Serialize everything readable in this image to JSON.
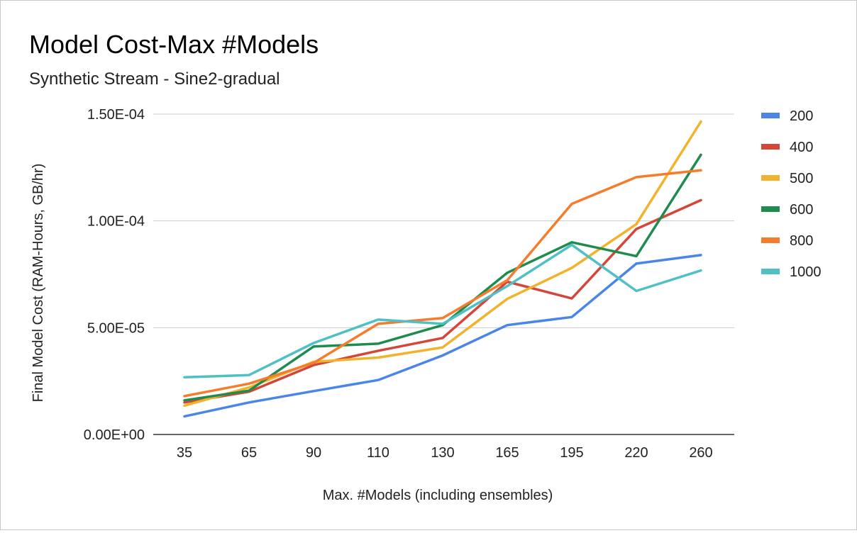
{
  "chart_data": {
    "type": "line",
    "title": "Model Cost-Max #Models",
    "subtitle": "Synthetic Stream - Sine2-gradual",
    "xlabel": "Max. #Models (including ensembles)",
    "ylabel": "Final Model Cost (RAM-Hours, GB/hr)",
    "categories": [
      "35",
      "65",
      "90",
      "110",
      "130",
      "165",
      "195",
      "220",
      "260"
    ],
    "y_ticks": [
      "0.00E+00",
      "5.00E-05",
      "1.00E-04",
      "1.50E-04"
    ],
    "ylim": [
      0,
      0.00015
    ],
    "grid": true,
    "legend_position": "right",
    "series": [
      {
        "name": "200",
        "color": "#4a86e8",
        "values": [
          8.5e-06,
          1.5e-05,
          2.03e-05,
          2.55e-05,
          3.7e-05,
          5.12e-05,
          5.5e-05,
          8e-05,
          8.4e-05
        ]
      },
      {
        "name": "400",
        "color": "#d44638",
        "values": [
          1.5e-05,
          2e-05,
          3.25e-05,
          3.92e-05,
          4.52e-05,
          7.15e-05,
          6.37e-05,
          9.62e-05,
          0.0001097
        ]
      },
      {
        "name": "500",
        "color": "#f1b32c",
        "values": [
          1.35e-05,
          2.2e-05,
          3.4e-05,
          3.6e-05,
          4.08e-05,
          6.35e-05,
          7.8e-05,
          9.85e-05,
          0.0001465
        ]
      },
      {
        "name": "600",
        "color": "#1e8c4f",
        "values": [
          1.6e-05,
          2.05e-05,
          4.12e-05,
          4.25e-05,
          5.12e-05,
          7.57e-05,
          9e-05,
          8.35e-05,
          0.000131
        ]
      },
      {
        "name": "800",
        "color": "#f57c2c",
        "values": [
          1.8e-05,
          2.38e-05,
          3.35e-05,
          5.18e-05,
          5.45e-05,
          7.22e-05,
          0.000108,
          0.0001205,
          0.0001237
        ]
      },
      {
        "name": "1000",
        "color": "#4fc0c4",
        "values": [
          2.68e-05,
          2.78e-05,
          4.28e-05,
          5.38e-05,
          5.18e-05,
          6.95e-05,
          8.88e-05,
          6.72e-05,
          7.68e-05
        ]
      }
    ]
  }
}
